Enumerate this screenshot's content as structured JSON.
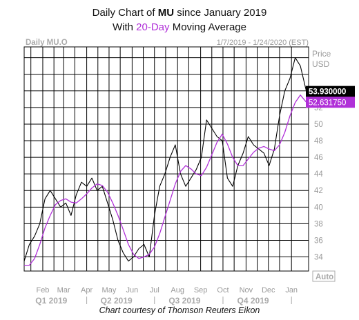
{
  "title": {
    "line1_prefix": "Daily Chart of ",
    "line1_symbol": "MU",
    "line1_suffix": " since January 2019",
    "line2_prefix": "With ",
    "line2_ma": "20-Day",
    "line2_suffix": " Moving Average"
  },
  "caption": "Chart courtesy of Thomson Reuters Eikon",
  "chart_data": {
    "type": "line",
    "chart_label": "Daily MU.O",
    "date_range": "1/7/2019 - 1/24/2020 (EST)",
    "y_axis_label_1": "Price",
    "y_axis_label_2": "USD",
    "auto_button": "Auto",
    "ylim": [
      32.3,
      59.3
    ],
    "yticks": [
      34,
      36,
      38,
      40,
      42,
      44,
      46,
      48,
      50,
      52
    ],
    "x_month_labels": [
      "Feb",
      "Mar",
      "Apr",
      "May",
      "Jun",
      "Jul",
      "Aug",
      "Sep",
      "Oct",
      "Nov",
      "Dec",
      "Jan"
    ],
    "x_quarter_labels": [
      "Q1 2019",
      "Q2 2019",
      "Q3 2019",
      "Q4 2019"
    ],
    "last_price_label": "53.930000",
    "ma_last_label": "52.631750",
    "colors": {
      "price_line": "#000000",
      "ma_line": "#b030d8",
      "grid": "#000000",
      "price_badge_bg": "#000000",
      "price_badge_text": "#ffffff",
      "ma_badge_bg": "#b030d8",
      "ma_badge_text": "#ffffff",
      "axis_text": "#999999",
      "quarter_text": "#aaaaaa"
    },
    "series": [
      {
        "kind": "price",
        "x": [
          "2019-01-07",
          "2019-01-14",
          "2019-01-21",
          "2019-01-28",
          "2019-02-04",
          "2019-02-11",
          "2019-02-18",
          "2019-02-25",
          "2019-03-04",
          "2019-03-11",
          "2019-03-18",
          "2019-03-25",
          "2019-04-01",
          "2019-04-08",
          "2019-04-15",
          "2019-04-22",
          "2019-04-29",
          "2019-05-06",
          "2019-05-13",
          "2019-05-20",
          "2019-05-27",
          "2019-06-03",
          "2019-06-10",
          "2019-06-17",
          "2019-06-24",
          "2019-07-01",
          "2019-07-08",
          "2019-07-15",
          "2019-07-22",
          "2019-07-29",
          "2019-08-05",
          "2019-08-12",
          "2019-08-19",
          "2019-08-26",
          "2019-09-02",
          "2019-09-09",
          "2019-09-16",
          "2019-09-23",
          "2019-09-30",
          "2019-10-07",
          "2019-10-14",
          "2019-10-21",
          "2019-10-28",
          "2019-11-04",
          "2019-11-11",
          "2019-11-18",
          "2019-11-25",
          "2019-12-02",
          "2019-12-09",
          "2019-12-16",
          "2019-12-23",
          "2019-12-30",
          "2020-01-06",
          "2020-01-13",
          "2020-01-21"
        ],
        "values": [
          33.5,
          35.5,
          36.5,
          38.0,
          41.0,
          42.0,
          41.0,
          40.0,
          40.5,
          39.0,
          41.5,
          43.0,
          42.5,
          43.5,
          42.0,
          42.5,
          40.5,
          38.5,
          36.0,
          34.5,
          33.5,
          34.0,
          35.0,
          35.5,
          34.0,
          39.0,
          42.5,
          44.0,
          46.0,
          47.5,
          44.0,
          42.5,
          43.5,
          44.5,
          46.0,
          50.5,
          49.5,
          48.5,
          48.0,
          43.5,
          42.5,
          45.0,
          46.5,
          48.5,
          47.5,
          47.0,
          46.5,
          45.0,
          47.0,
          51.0,
          54.0,
          55.5,
          58.0,
          57.0,
          53.93
        ]
      },
      {
        "kind": "moving_average",
        "x": [
          "2019-01-07",
          "2019-01-14",
          "2019-01-21",
          "2019-01-28",
          "2019-02-04",
          "2019-02-11",
          "2019-02-18",
          "2019-02-25",
          "2019-03-04",
          "2019-03-11",
          "2019-03-18",
          "2019-03-25",
          "2019-04-01",
          "2019-04-08",
          "2019-04-15",
          "2019-04-22",
          "2019-04-29",
          "2019-05-06",
          "2019-05-13",
          "2019-05-20",
          "2019-05-27",
          "2019-06-03",
          "2019-06-10",
          "2019-06-17",
          "2019-06-24",
          "2019-07-01",
          "2019-07-08",
          "2019-07-15",
          "2019-07-22",
          "2019-07-29",
          "2019-08-05",
          "2019-08-12",
          "2019-08-19",
          "2019-08-26",
          "2019-09-02",
          "2019-09-09",
          "2019-09-16",
          "2019-09-23",
          "2019-09-30",
          "2019-10-07",
          "2019-10-14",
          "2019-10-21",
          "2019-10-28",
          "2019-11-04",
          "2019-11-11",
          "2019-11-18",
          "2019-11-25",
          "2019-12-02",
          "2019-12-09",
          "2019-12-16",
          "2019-12-23",
          "2019-12-30",
          "2020-01-06",
          "2020-01-13",
          "2020-01-21"
        ],
        "values": [
          33.0,
          33.0,
          33.8,
          35.5,
          37.5,
          39.0,
          40.3,
          40.8,
          41.0,
          40.6,
          40.5,
          41.0,
          41.6,
          42.3,
          42.8,
          42.6,
          41.8,
          40.5,
          39.0,
          37.3,
          35.5,
          34.3,
          33.8,
          34.0,
          34.3,
          35.2,
          36.8,
          38.8,
          40.8,
          42.8,
          44.3,
          45.0,
          44.6,
          44.0,
          43.8,
          44.8,
          46.3,
          47.8,
          48.8,
          47.6,
          46.0,
          45.0,
          45.0,
          45.8,
          46.6,
          47.1,
          47.3,
          47.0,
          46.8,
          47.5,
          49.0,
          51.0,
          52.6,
          53.5,
          52.63
        ]
      }
    ]
  }
}
